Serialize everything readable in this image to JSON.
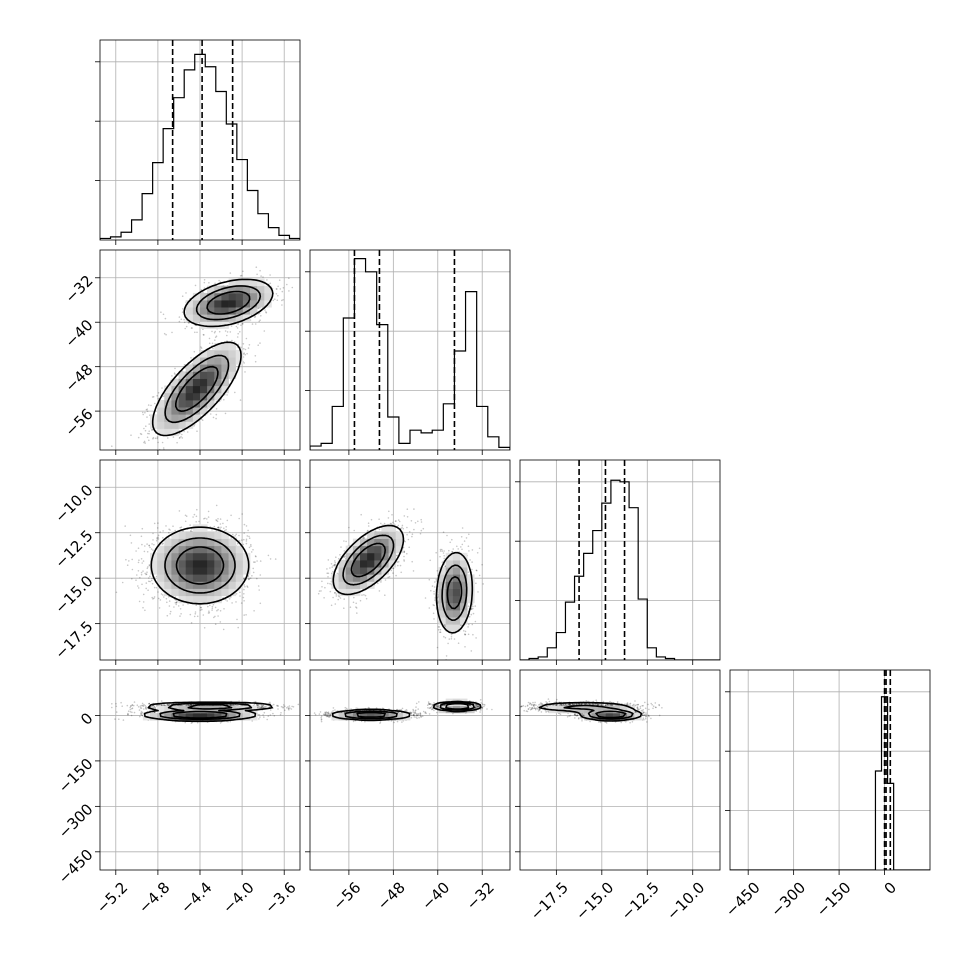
{
  "chart_data": {
    "type": "corner",
    "grid": true,
    "parameters": [
      {
        "range": [
          -5.35,
          -3.45
        ],
        "ticks": [
          -5.2,
          -4.8,
          -4.4,
          -4.0,
          -3.6
        ],
        "tick_labels": [
          "−5.2",
          "−4.8",
          "−4.4",
          "−4.0",
          "−3.6"
        ]
      },
      {
        "range": [
          -63,
          -27
        ],
        "ticks": [
          -56,
          -48,
          -40,
          -32
        ],
        "tick_labels": [
          "−56",
          "−48",
          "−40",
          "−32"
        ]
      },
      {
        "range": [
          -19.5,
          -8.5
        ],
        "ticks": [
          -17.5,
          -15.0,
          -12.5,
          -10.0
        ],
        "tick_labels": [
          "−17.5",
          "−15.0",
          "−12.5",
          "−10.0"
        ]
      },
      {
        "range": [
          -510,
          150
        ],
        "ticks": [
          -450,
          -300,
          -150,
          0
        ],
        "tick_labels": [
          "−450",
          "−300",
          "−150",
          "0"
        ]
      }
    ],
    "y_ticks": [
      null,
      {
        "ticks": [
          -32,
          -40,
          -48,
          -56
        ],
        "tick_labels": [
          "−32",
          "−40",
          "−48",
          "−56"
        ]
      },
      {
        "ticks": [
          -10.0,
          -12.5,
          -15.0,
          -17.5
        ],
        "tick_labels": [
          "−10.0",
          "−12.5",
          "−15.0",
          "−17.5"
        ]
      },
      {
        "ticks": [
          0,
          -150,
          -300,
          -450
        ],
        "tick_labels": [
          "0",
          "−150",
          "−300",
          "−450"
        ]
      }
    ],
    "histograms": [
      {
        "bin_edges": [
          -5.35,
          -5.25,
          -5.15,
          -5.05,
          -4.95,
          -4.85,
          -4.75,
          -4.65,
          -4.55,
          -4.45,
          -4.35,
          -4.25,
          -4.15,
          -4.05,
          -3.95,
          -3.85,
          -3.75,
          -3.65,
          -3.55,
          -3.45
        ],
        "counts": [
          1,
          2,
          5,
          13,
          30,
          50,
          72,
          92,
          110,
          120,
          112,
          96,
          75,
          52,
          32,
          17,
          8,
          3,
          1
        ],
        "ymax": 128,
        "quantiles": [
          -4.66,
          -4.38,
          -4.09
        ]
      },
      {
        "bin_edges": [
          -63,
          -61,
          -59,
          -57,
          -55,
          -53,
          -51,
          -49,
          -47,
          -45,
          -43,
          -41,
          -39,
          -37,
          -35,
          -33,
          -31,
          -29,
          -27
        ],
        "counts": [
          3,
          5,
          33,
          100,
          145,
          135,
          95,
          25,
          5,
          15,
          13,
          15,
          35,
          75,
          120,
          33,
          10,
          2
        ],
        "ymax": 150,
        "quantiles": [
          -55,
          -50.5,
          -37
        ]
      },
      {
        "bin_edges": [
          -19.5,
          -19.0,
          -18.5,
          -18.0,
          -17.5,
          -17.0,
          -16.5,
          -16.0,
          -15.5,
          -15.0,
          -14.5,
          -14.0,
          -13.5,
          -13.0,
          -12.5,
          -12.0,
          -11.5,
          -11.0,
          -10.5,
          -10.0,
          -9.5,
          -9.0,
          -8.5
        ],
        "counts": [
          0,
          1,
          2,
          8,
          18,
          38,
          55,
          70,
          85,
          103,
          118,
          117,
          100,
          40,
          8,
          2,
          1,
          0,
          0,
          0,
          0,
          0
        ],
        "ymax": 130,
        "quantiles": [
          -16.25,
          -14.8,
          -13.75
        ]
      },
      {
        "bin_edges": [
          -510,
          -30,
          -10,
          10,
          30,
          150
        ],
        "counts": [
          0,
          80,
          140,
          70,
          0
        ],
        "ymax": 160,
        "quantiles": [
          0,
          5,
          19
        ]
      }
    ],
    "pair_panels": [
      {
        "i": 0,
        "j": 1,
        "blobs": [
          {
            "cx": -4.43,
            "cy": -52,
            "sx": 0.2,
            "sy": 4.0,
            "rho": 0.72,
            "n": 1500
          },
          {
            "cx": -4.13,
            "cy": -36.5,
            "sx": 0.2,
            "sy": 2.0,
            "rho": 0.4,
            "n": 1000
          }
        ]
      },
      {
        "i": 0,
        "j": 2,
        "blobs": [
          {
            "cx": -4.4,
            "cy": -14.3,
            "sx": 0.22,
            "sy": 1.0,
            "rho": 0.0,
            "n": 2500
          }
        ]
      },
      {
        "i": 1,
        "j": 2,
        "blobs": [
          {
            "cx": -52.5,
            "cy": -14.0,
            "sx": 3.0,
            "sy": 0.9,
            "rho": 0.6,
            "n": 1500
          },
          {
            "cx": -37,
            "cy": -15.8,
            "sx": 1.6,
            "sy": 1.1,
            "rho": 0.1,
            "n": 1000
          }
        ]
      },
      {
        "i": 0,
        "j": 3,
        "blobs": [
          {
            "cx": -4.4,
            "cy": 2,
            "sx": 0.25,
            "sy": 9,
            "rho": 0.0,
            "n": 1500
          },
          {
            "cx": -4.3,
            "cy": 30,
            "sx": 0.3,
            "sy": 6,
            "rho": 0.0,
            "n": 1000
          }
        ]
      },
      {
        "i": 1,
        "j": 3,
        "blobs": [
          {
            "cx": -52,
            "cy": 2,
            "sx": 3.5,
            "sy": 8,
            "rho": 0.0,
            "n": 1500
          },
          {
            "cx": -36.5,
            "cy": 30,
            "sx": 2.0,
            "sy": 7,
            "rho": 0.0,
            "n": 1000
          }
        ]
      },
      {
        "i": 2,
        "j": 3,
        "blobs": [
          {
            "cx": -14.5,
            "cy": 3,
            "sx": 0.8,
            "sy": 9,
            "rho": 0.0,
            "n": 1500
          },
          {
            "cx": -16.0,
            "cy": 28,
            "sx": 1.5,
            "sy": 8,
            "rho": 0.0,
            "n": 1000
          }
        ]
      }
    ]
  }
}
